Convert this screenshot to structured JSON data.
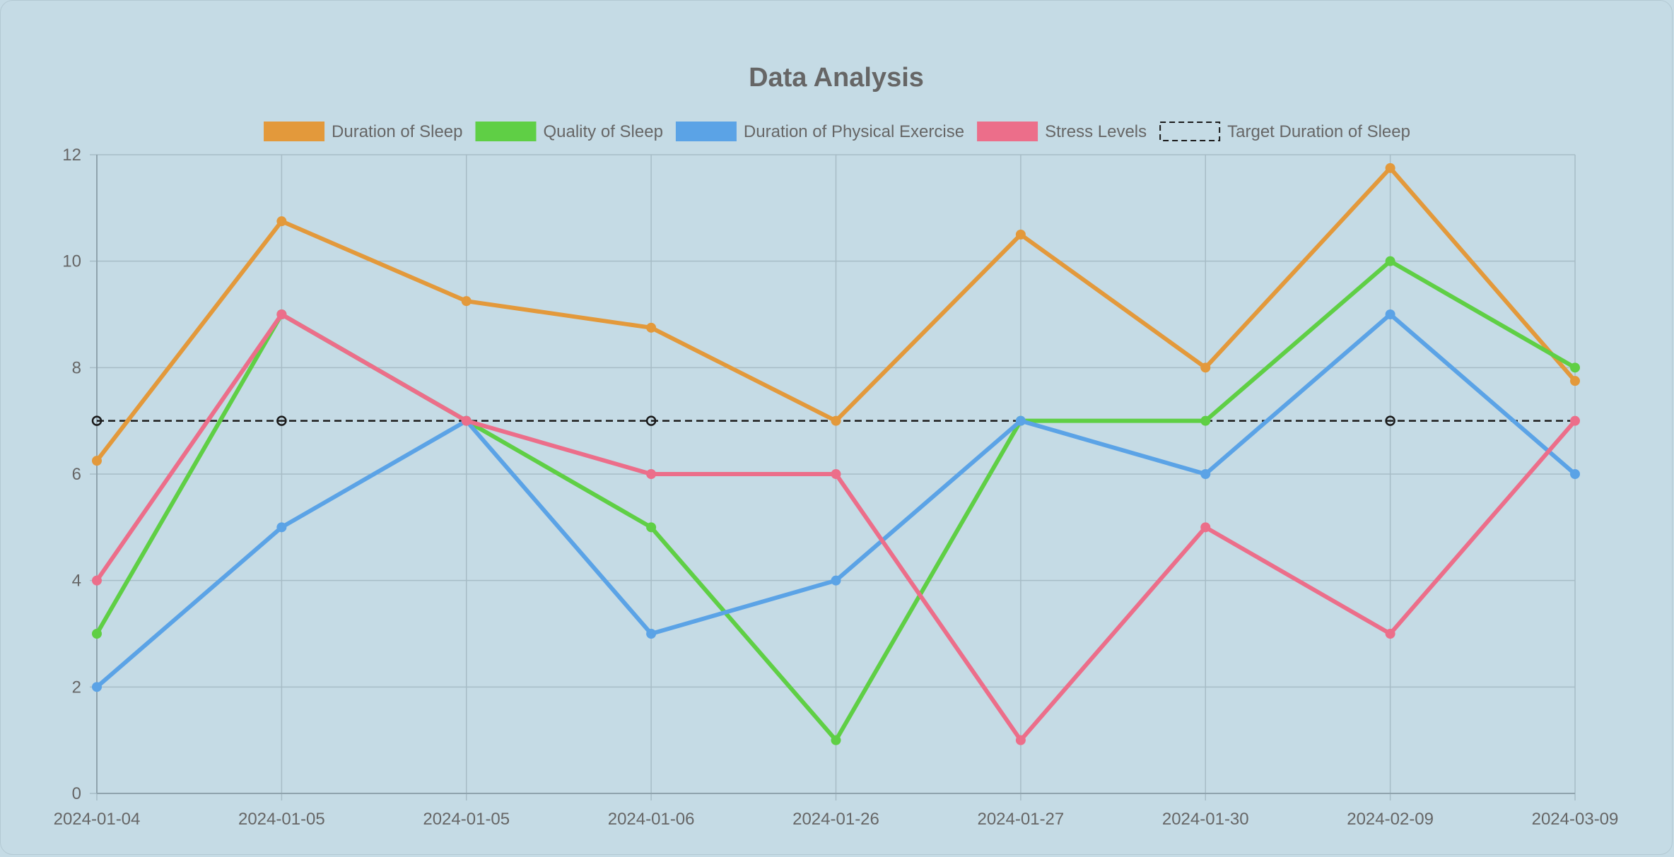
{
  "chart_data": {
    "type": "line",
    "title": "Data Analysis",
    "xlabel": "",
    "ylabel": "",
    "categories": [
      "2024-01-04",
      "2024-01-05",
      "2024-01-05",
      "2024-01-06",
      "2024-01-26",
      "2024-01-27",
      "2024-01-30",
      "2024-02-09",
      "2024-03-09"
    ],
    "ylim": [
      0,
      12
    ],
    "yticks": [
      0,
      2,
      4,
      6,
      8,
      10,
      12
    ],
    "grid": true,
    "legend_position": "top",
    "series": [
      {
        "name": "Duration of Sleep",
        "color": "#e3993b",
        "values": [
          6.25,
          10.75,
          9.25,
          8.75,
          7,
          10.5,
          8,
          11.75,
          7.75
        ]
      },
      {
        "name": "Quality of Sleep",
        "color": "#5fcf45",
        "values": [
          3,
          9,
          7,
          5,
          1,
          7,
          7,
          10,
          8
        ]
      },
      {
        "name": "Duration of Physical Exercise",
        "color": "#5ba3e6",
        "values": [
          2,
          5,
          7,
          3,
          4,
          7,
          6,
          9,
          6
        ]
      },
      {
        "name": "Stress Levels",
        "color": "#ec6e8a",
        "values": [
          4,
          9,
          7,
          6,
          6,
          1,
          5,
          3,
          7
        ]
      },
      {
        "name": "Target Duration of Sleep",
        "color": "#1a1a1a",
        "dashed": true,
        "values": [
          7,
          7,
          7,
          7,
          7,
          7,
          7,
          7,
          7
        ],
        "marker_indices": [
          0,
          1,
          3,
          7
        ]
      }
    ]
  }
}
